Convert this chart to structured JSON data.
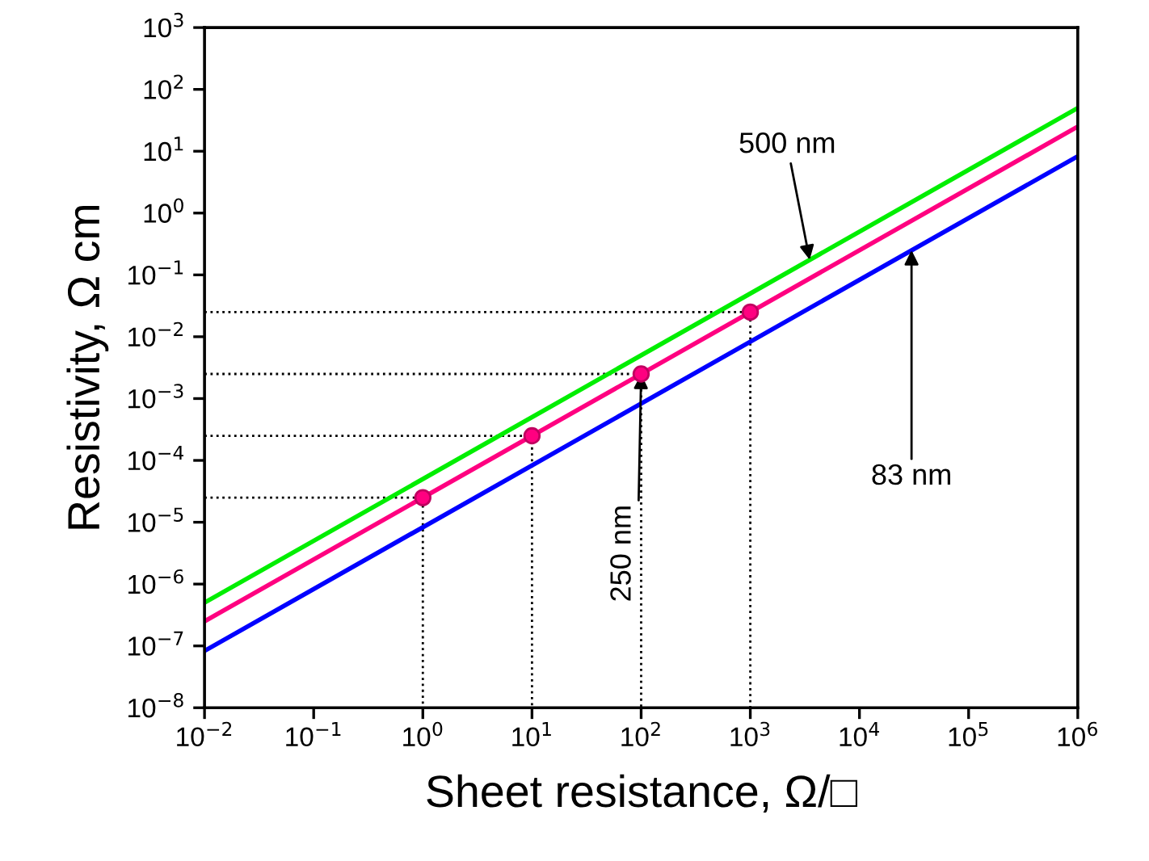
{
  "chart_data": {
    "type": "line",
    "xlabel": "Sheet resistance, Ω/□",
    "ylabel": "Resistivity, Ω cm",
    "log": "xy",
    "grid": false,
    "legend": false,
    "line_style": "solid",
    "marker": "none",
    "xlim": [
      0.01,
      1000000
    ],
    "ylim": [
      1e-08,
      1000
    ],
    "xticks": [
      {
        "value": 0.01,
        "label": "10$^{−2}$"
      },
      {
        "value": 0.1,
        "label": "10$^{−1}$"
      },
      {
        "value": 1,
        "label": "10$^{0}$"
      },
      {
        "value": 10,
        "label": "10$^{1}$"
      },
      {
        "value": 100,
        "label": "10$^{2}$"
      },
      {
        "value": 1000,
        "label": "10$^{3}$"
      },
      {
        "value": 10000,
        "label": "10$^{4}$"
      },
      {
        "value": 100000,
        "label": "10$^{5}$"
      },
      {
        "value": 1000000,
        "label": "10$^{6}$"
      }
    ],
    "yticks": [
      {
        "value": 1e-08,
        "label": "10$^{−8}$"
      },
      {
        "value": 1e-07,
        "label": "10$^{−7}$"
      },
      {
        "value": 1e-06,
        "label": "10$^{−6}$"
      },
      {
        "value": 1e-05,
        "label": "10$^{−5}$"
      },
      {
        "value": 0.0001,
        "label": "10$^{−4}$"
      },
      {
        "value": 0.001,
        "label": "10$^{−3}$"
      },
      {
        "value": 0.01,
        "label": "10$^{−2}$"
      },
      {
        "value": 0.1,
        "label": "10$^{−1}$"
      },
      {
        "value": 1,
        "label": "10$^{0}$"
      },
      {
        "value": 10,
        "label": "10$^{1}$"
      },
      {
        "value": 100,
        "label": "10$^{2}$"
      },
      {
        "value": 1000,
        "label": "10$^{3}$"
      }
    ],
    "series": [
      {
        "color": "#00ee00",
        "x": [
          0.01,
          1000000
        ],
        "values": [
          5e-07,
          50
        ]
      },
      {
        "color": "#ff0080",
        "x": [
          0.01,
          1000000
        ],
        "values": [
          2.5e-07,
          25
        ]
      },
      {
        "color": "#0000ff",
        "x": [
          0.01,
          1000000
        ],
        "values": [
          8.3e-08,
          8.3
        ]
      },
      {
        "color": "#000000",
        "line_style": "dotted",
        "x": [
          0.01,
          1,
          1
        ],
        "values": [
          2.5e-05,
          2.5e-05,
          1e-08
        ]
      },
      {
        "color": "#000000",
        "line_style": "dotted",
        "x": [
          0.01,
          10,
          10
        ],
        "values": [
          0.00025,
          0.00025,
          1e-08
        ]
      },
      {
        "color": "#000000",
        "line_style": "dotted",
        "x": [
          0.01,
          100,
          100
        ],
        "values": [
          0.0025,
          0.0025,
          1e-08
        ]
      },
      {
        "color": "#000000",
        "line_style": "dotted",
        "x": [
          0.01,
          1000,
          1000
        ],
        "values": [
          0.025,
          0.025,
          1e-08
        ]
      },
      {
        "type": "scatter",
        "marker": "circle",
        "color": "#ff0080",
        "x": [
          1,
          10,
          100,
          1000
        ],
        "values": [
          2.5e-05,
          0.00025,
          0.0025,
          0.025
        ]
      }
    ],
    "annotations": [
      {
        "text": "500 nm",
        "x": 3500,
        "y": 0.175
      },
      {
        "text": "250 nm",
        "x": 100,
        "y": 0.0025
      },
      {
        "text": "83 nm",
        "x": 30000,
        "y": 0.25
      }
    ]
  }
}
